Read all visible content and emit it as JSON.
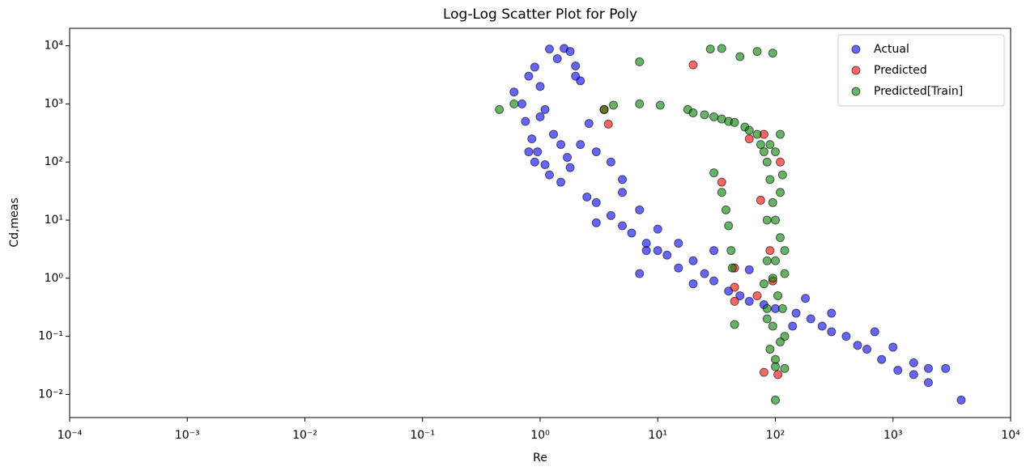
{
  "chart_data": {
    "type": "scatter",
    "title": "Log-Log Scatter Plot for Poly",
    "x_label": "Re",
    "y_label": "Cd,meas",
    "log_x": true,
    "log_y": true,
    "legend": "upper right",
    "xlim": [
      0.0001,
      10000
    ],
    "ylim": [
      0.004,
      20000
    ],
    "xticks": [
      {
        "value": 0.0001,
        "label": "10⁻⁴"
      },
      {
        "value": 0.001,
        "label": "10⁻³"
      },
      {
        "value": 0.01,
        "label": "10⁻²"
      },
      {
        "value": 0.1,
        "label": "10⁻¹"
      },
      {
        "value": 1,
        "label": "10⁰"
      },
      {
        "value": 10,
        "label": "10¹"
      },
      {
        "value": 100,
        "label": "10²"
      },
      {
        "value": 1000,
        "label": "10³"
      },
      {
        "value": 10000,
        "label": "10⁴"
      }
    ],
    "yticks": [
      {
        "value": 0.01,
        "label": "10⁻²"
      },
      {
        "value": 0.1,
        "label": "10⁻¹"
      },
      {
        "value": 1,
        "label": "10⁰"
      },
      {
        "value": 10,
        "label": "10¹"
      },
      {
        "value": 100,
        "label": "10²"
      },
      {
        "value": 1000,
        "label": "10³"
      },
      {
        "value": 10000,
        "label": "10⁴"
      }
    ],
    "series": [
      {
        "name": "Actual",
        "color": "#0000ff",
        "x": [
          0.6,
          0.7,
          0.8,
          0.9,
          1.0,
          1.1,
          1.2,
          1.4,
          1.6,
          1.8,
          2.0,
          2.2,
          0.75,
          0.85,
          0.95,
          1.0,
          1.1,
          1.3,
          1.5,
          1.7,
          2,
          0.8,
          0.9,
          1.2,
          1.5,
          1.8,
          2.2,
          2.6,
          3,
          2.5,
          3,
          4,
          5,
          5,
          6,
          7,
          8,
          10,
          10,
          12,
          15,
          15,
          20,
          20,
          25,
          30,
          40,
          50,
          60,
          80,
          100,
          150,
          200,
          250,
          300,
          400,
          500,
          600,
          700,
          800,
          1000,
          1100,
          1500,
          1500,
          2000,
          2000,
          2800,
          3800,
          5,
          4,
          3,
          7,
          8,
          30,
          60,
          140,
          180,
          300
        ],
        "values": [
          1600,
          1000,
          3000,
          4300,
          2000,
          800,
          8800,
          6000,
          9000,
          8000,
          4500,
          2500,
          500,
          250,
          150,
          600,
          90,
          300,
          200,
          120,
          3000,
          150,
          100,
          60,
          45,
          80,
          200,
          460,
          150,
          25,
          20,
          12,
          30,
          8,
          6,
          15,
          4,
          3,
          7,
          2.5,
          4,
          1.5,
          2,
          0.8,
          1.2,
          0.9,
          0.6,
          0.5,
          0.4,
          0.35,
          0.3,
          0.25,
          0.2,
          0.15,
          0.12,
          0.1,
          0.07,
          0.06,
          0.12,
          0.04,
          0.065,
          0.026,
          0.035,
          0.022,
          0.016,
          0.028,
          0.028,
          0.008,
          50,
          100,
          9,
          1.2,
          3,
          3,
          1.4,
          0.15,
          0.45,
          0.25
        ]
      },
      {
        "name": "Predicted",
        "color": "#ff0000",
        "x": [
          3.5,
          3.8,
          20,
          35,
          45,
          45,
          45,
          80,
          105,
          80,
          75,
          90,
          95,
          60,
          110,
          70
        ],
        "values": [
          800,
          450,
          4700,
          45,
          1.5,
          0.7,
          0.4,
          0.024,
          0.022,
          300,
          22,
          3,
          0.9,
          250,
          100,
          0.5
        ]
      },
      {
        "name": "Predicted[Train]",
        "color": "#008000",
        "x": [
          0.45,
          0.6,
          3.5,
          4.2,
          7,
          7,
          10.5,
          18,
          20,
          25,
          30,
          35,
          40,
          45,
          55,
          60,
          70,
          75,
          80,
          28,
          35,
          50,
          70,
          95,
          30,
          35,
          38,
          40,
          42,
          43,
          45,
          85,
          90,
          95,
          100,
          110,
          85,
          95,
          105,
          115,
          120,
          90,
          100,
          110,
          85,
          100,
          100,
          120,
          110,
          90,
          120,
          80,
          100,
          115,
          85,
          95,
          110,
          85,
          120,
          100
        ],
        "values": [
          800,
          1000,
          800,
          950,
          5300,
          1000,
          950,
          800,
          700,
          650,
          600,
          550,
          500,
          480,
          400,
          350,
          300,
          200,
          150,
          8800,
          9000,
          6500,
          8000,
          7500,
          65,
          30,
          15,
          8,
          3,
          1.5,
          0.16,
          100,
          50,
          20,
          10,
          5,
          2,
          1,
          0.5,
          0.3,
          0.1,
          0.06,
          0.04,
          0.08,
          0.2,
          0.03,
          0.008,
          0.028,
          30,
          200,
          1.2,
          0.8,
          150,
          60,
          10,
          0.15,
          300,
          0.3,
          3,
          2
        ]
      }
    ]
  }
}
